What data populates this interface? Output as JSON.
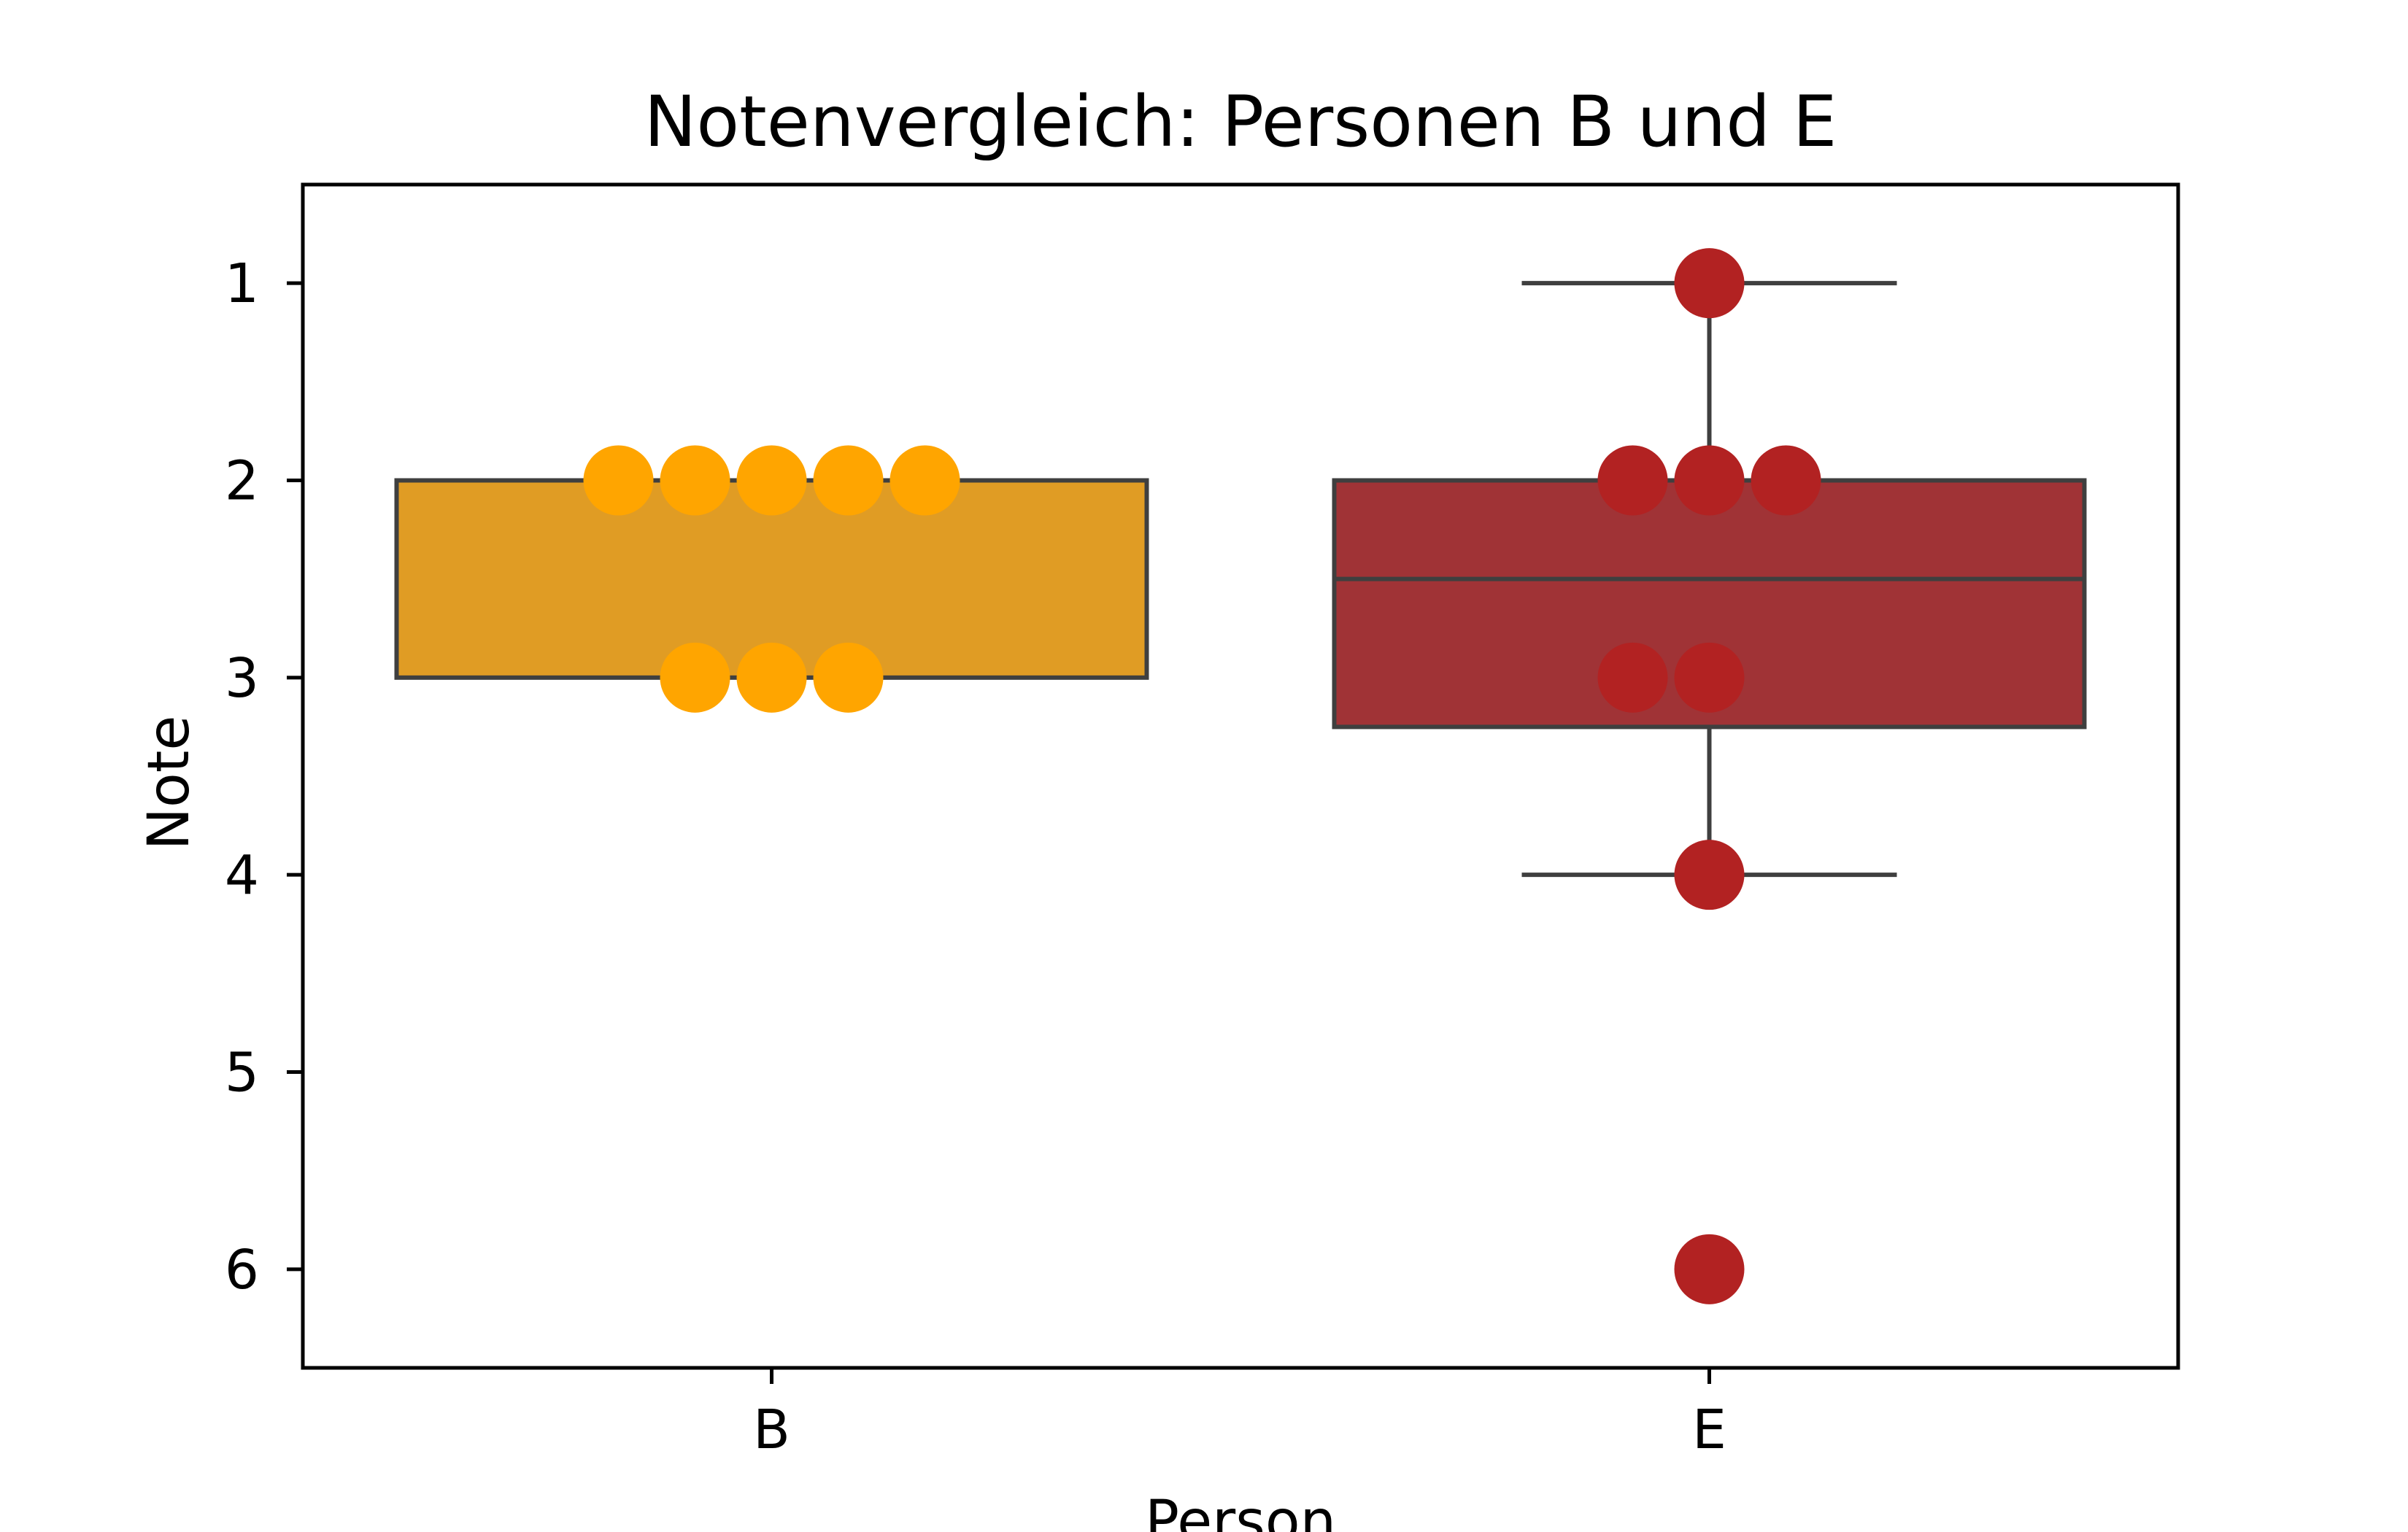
{
  "chart_data": {
    "type": "box",
    "title": "Notenvergleich: Personen B und E",
    "xlabel": "Person",
    "ylabel": "Note",
    "categories": [
      "B",
      "E"
    ],
    "y_inverted": true,
    "ylim": [
      6.5,
      0.5
    ],
    "yticks": [
      "1",
      "2",
      "3",
      "4",
      "5",
      "6"
    ],
    "grid": false,
    "boxes": [
      {
        "category": "B",
        "q1": 2,
        "median": 2,
        "q3": 3,
        "whisker_low": 2,
        "whisker_high": 3,
        "color": "#e09c24"
      },
      {
        "category": "E",
        "q1": 2,
        "median": 2.5,
        "q3": 3.25,
        "whisker_low": 1,
        "whisker_high": 4,
        "color": "#a03336"
      }
    ],
    "points": [
      {
        "category": "B",
        "values": [
          2,
          2,
          2,
          2,
          2,
          3,
          3,
          3
        ],
        "color": "#ffa500"
      },
      {
        "category": "E",
        "values": [
          1,
          2,
          2,
          2,
          3,
          3,
          4,
          6
        ],
        "color": "#b22222"
      }
    ],
    "edge_color": "#3f3f3f"
  }
}
